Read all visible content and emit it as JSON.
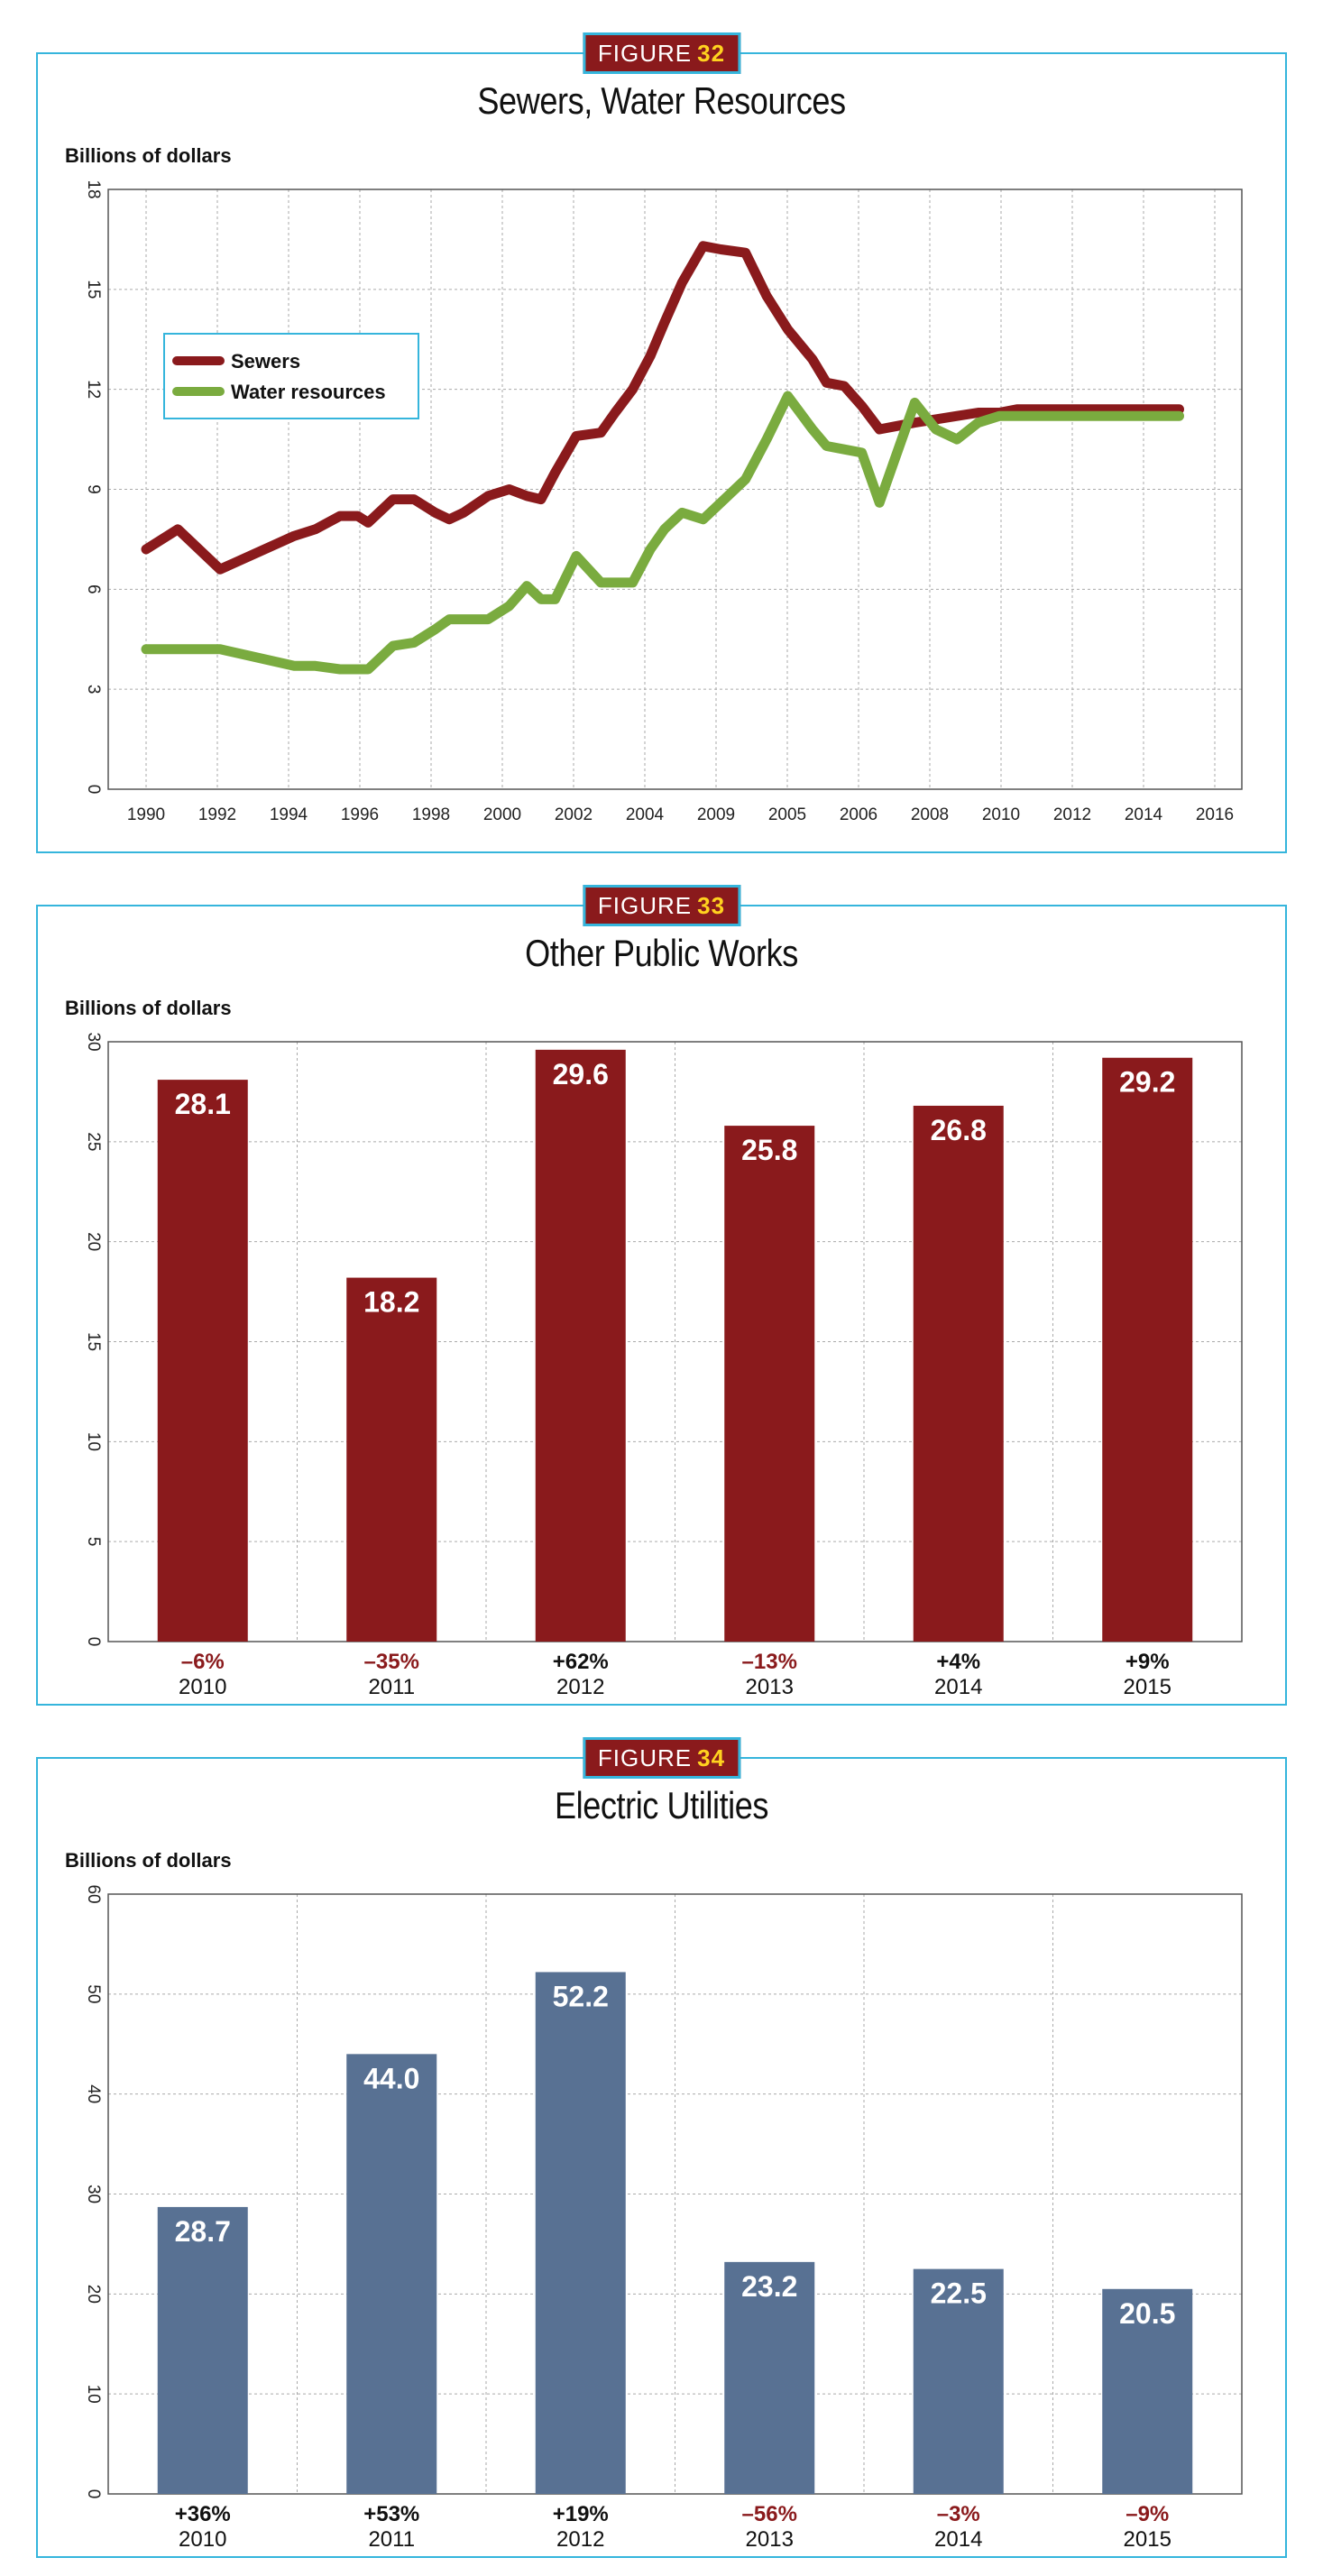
{
  "figures": [
    {
      "tag_label": "FIGURE",
      "tag_number": "32",
      "title": "Sewers, Water Resources",
      "ylabel": "Billions of dollars"
    },
    {
      "tag_label": "FIGURE",
      "tag_number": "33",
      "title": "Other Public Works",
      "ylabel": "Billions of dollars"
    },
    {
      "tag_label": "FIGURE",
      "tag_number": "34",
      "title": "Electric Utilities",
      "ylabel": "Billions of dollars"
    }
  ],
  "chart_data": [
    {
      "type": "line",
      "title": "Sewers, Water Resources",
      "ylabel": "Billions of dollars",
      "ylim": [
        0,
        18
      ],
      "yticks": [
        0,
        3,
        6,
        9,
        12,
        15,
        18
      ],
      "x_tick_labels": [
        "1990",
        "1992",
        "1994",
        "1996",
        "1998",
        "2000",
        "2002",
        "2004",
        "2009",
        "2005",
        "2006",
        "2008",
        "2010",
        "2012",
        "2014",
        "2016"
      ],
      "x_index": [
        0,
        0.9,
        2.1,
        4.2,
        4.8,
        5.5,
        6.0,
        6.3,
        7.0,
        7.6,
        8.2,
        8.6,
        9.0,
        9.7,
        10.3,
        10.8,
        11.2,
        11.6,
        12.2,
        12.9,
        13.3,
        13.8,
        14.3,
        14.7,
        15.2,
        15.8,
        16.3,
        17.0,
        17.6,
        18.2,
        18.9,
        19.3,
        19.8,
        20.3,
        20.8,
        21.3,
        21.8,
        22.4,
        23.0,
        23.6,
        24.2,
        24.7,
        25.3,
        25.8,
        26.3,
        26.8,
        27.3,
        27.8,
        28.3,
        28.8,
        29.3
      ],
      "series": [
        {
          "name": "Sewers",
          "color": "#8a1a1c",
          "values": [
            7.2,
            7.8,
            6.6,
            7.6,
            7.8,
            8.2,
            8.2,
            8.0,
            8.7,
            8.7,
            8.3,
            8.1,
            8.3,
            8.8,
            9.0,
            8.8,
            8.7,
            9.5,
            10.6,
            10.7,
            11.3,
            12.0,
            13.0,
            14.0,
            15.2,
            16.3,
            16.2,
            16.1,
            14.8,
            13.8,
            12.9,
            12.2,
            12.1,
            11.5,
            10.8,
            10.9,
            11.0,
            11.1,
            11.2,
            11.3,
            11.3,
            11.4,
            11.4,
            11.4,
            11.4,
            11.4,
            11.4,
            11.4,
            11.4,
            11.4,
            11.4
          ]
        },
        {
          "name": "Water resources",
          "color": "#7aab3f",
          "values": [
            4.2,
            4.2,
            4.2,
            3.7,
            3.7,
            3.6,
            3.6,
            3.6,
            4.3,
            4.4,
            4.8,
            5.1,
            5.1,
            5.1,
            5.5,
            6.1,
            5.7,
            5.7,
            7.0,
            6.2,
            6.2,
            6.2,
            7.2,
            7.8,
            8.3,
            8.1,
            8.6,
            9.3,
            10.5,
            11.8,
            10.8,
            10.3,
            10.2,
            10.1,
            8.6,
            10.1,
            11.6,
            10.8,
            10.5,
            11.0,
            11.2,
            11.2,
            11.2,
            11.2,
            11.2,
            11.2,
            11.2,
            11.2,
            11.2,
            11.2,
            11.2
          ]
        }
      ],
      "legend_placement": "top-left",
      "grid": true
    },
    {
      "type": "bar",
      "title": "Other Public Works",
      "ylabel": "Billions of dollars",
      "ylim": [
        0,
        30
      ],
      "yticks": [
        0,
        5,
        10,
        15,
        20,
        25,
        30
      ],
      "categories": [
        "2010",
        "2011",
        "2012",
        "2013",
        "2014",
        "2015"
      ],
      "values": [
        28.1,
        18.2,
        29.6,
        25.8,
        26.8,
        29.2
      ],
      "value_labels": [
        "28.1",
        "18.2",
        "29.6",
        "25.8",
        "26.8",
        "29.2"
      ],
      "changes": [
        "–6%",
        "–35%",
        "+62%",
        "–13%",
        "+4%",
        "+9%"
      ],
      "bar_color": "#8a1a1c",
      "grid": true
    },
    {
      "type": "bar",
      "title": "Electric Utilities",
      "ylabel": "Billions of dollars",
      "ylim": [
        0,
        60
      ],
      "yticks": [
        0,
        10,
        20,
        30,
        40,
        50,
        60
      ],
      "categories": [
        "2010",
        "2011",
        "2012",
        "2013",
        "2014",
        "2015"
      ],
      "values": [
        28.7,
        44.0,
        52.2,
        23.2,
        22.5,
        20.5
      ],
      "value_labels": [
        "28.7",
        "44.0",
        "52.2",
        "23.2",
        "22.5",
        "20.5"
      ],
      "changes": [
        "+36%",
        "+53%",
        "+19%",
        "–56%",
        "–3%",
        "–9%"
      ],
      "bar_color": "#587193",
      "grid": true
    }
  ],
  "colors": {
    "frame": "#35b5dc",
    "negative_change": "#8a1a1c",
    "positive_change": "#111111"
  }
}
